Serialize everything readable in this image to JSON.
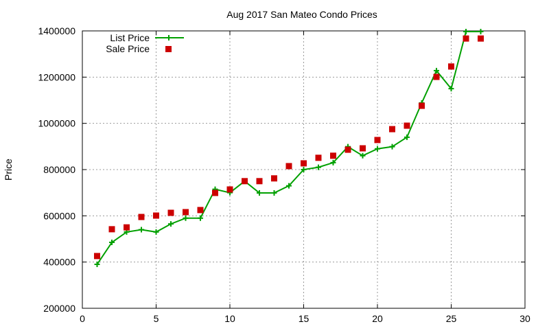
{
  "chart_data": {
    "type": "line",
    "title": "Aug 2017 San Mateo Condo Prices",
    "xlabel": "",
    "ylabel": "Price",
    "xlim": [
      0,
      30
    ],
    "ylim": [
      200000,
      1400000
    ],
    "xticks": [
      0,
      5,
      10,
      15,
      20,
      25,
      30
    ],
    "yticks": [
      200000,
      400000,
      600000,
      800000,
      1000000,
      1200000,
      1400000
    ],
    "grid": true,
    "legend_position": "top-left",
    "x": [
      1,
      2,
      3,
      4,
      5,
      6,
      7,
      8,
      9,
      10,
      11,
      12,
      13,
      14,
      15,
      16,
      17,
      18,
      19,
      20,
      21,
      22,
      23,
      24,
      25,
      26,
      27
    ],
    "series": [
      {
        "name": "List Price",
        "style": "linespoints",
        "marker": "plus",
        "color": "#00a000",
        "values": [
          390000,
          485000,
          530000,
          540000,
          530000,
          565000,
          590000,
          590000,
          715000,
          700000,
          750000,
          699000,
          699000,
          730000,
          800000,
          810000,
          830000,
          899000,
          860000,
          890000,
          899000,
          940000,
          1088000,
          1228000,
          1150000,
          1397000,
          1397000
        ]
      },
      {
        "name": "Sale Price",
        "style": "points",
        "marker": "square",
        "color": "#cc0000",
        "values": [
          426000,
          542000,
          550000,
          595000,
          601000,
          613000,
          616000,
          625000,
          699000,
          714000,
          750000,
          750000,
          762000,
          815000,
          827000,
          851000,
          860000,
          886000,
          892000,
          928000,
          975000,
          990000,
          1076000,
          1201000,
          1246000,
          1367000,
          1367000
        ]
      }
    ]
  }
}
